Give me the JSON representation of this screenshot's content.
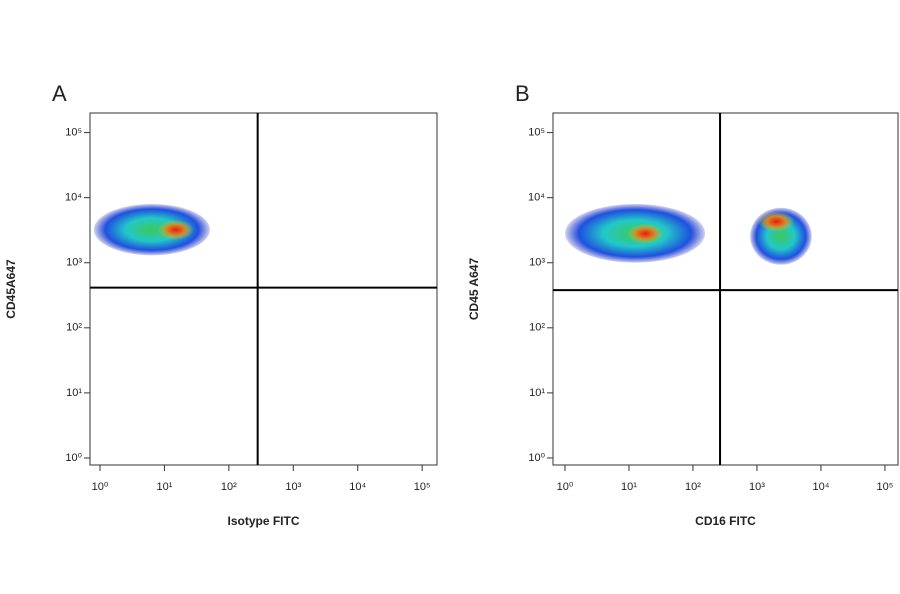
{
  "chart_data": [
    {
      "type": "density",
      "panel": "A",
      "x_label": "Isotype FITC",
      "y_label": "CD45A647",
      "log_scale": true,
      "xlim": [
        0.7,
        170000
      ],
      "ylim": [
        0.78,
        200000
      ],
      "xticks": [
        {
          "value": 1,
          "label": "10⁰"
        },
        {
          "value": 10,
          "label": "10¹"
        },
        {
          "value": 100,
          "label": "10²"
        },
        {
          "value": 1000,
          "label": "10³"
        },
        {
          "value": 10000,
          "label": "10⁴"
        },
        {
          "value": 100000,
          "label": "10⁵"
        }
      ],
      "yticks": [
        {
          "value": 1,
          "label": "10⁰"
        },
        {
          "value": 10,
          "label": "10¹"
        },
        {
          "value": 100,
          "label": "10²"
        },
        {
          "value": 1000,
          "label": "10³"
        },
        {
          "value": 10000,
          "label": "10⁴"
        },
        {
          "value": 100000,
          "label": "10⁵"
        }
      ],
      "gate": {
        "x": 280,
        "y": 415
      },
      "populations": [
        {
          "x": [
            0.8,
            51
          ],
          "y": [
            1300,
            8000
          ],
          "peak_x": 15,
          "peak_y": 3200
        }
      ]
    },
    {
      "type": "density",
      "panel": "B",
      "x_label": "CD16 FITC",
      "y_label": "CD45 A647",
      "log_scale": true,
      "xlim": [
        0.65,
        160000
      ],
      "ylim": [
        0.78,
        200000
      ],
      "xticks": [
        {
          "value": 1,
          "label": "10⁰"
        },
        {
          "value": 10,
          "label": "10¹"
        },
        {
          "value": 100,
          "label": "10²"
        },
        {
          "value": 1000,
          "label": "10³"
        },
        {
          "value": 10000,
          "label": "10⁴"
        },
        {
          "value": 100000,
          "label": "10⁵"
        }
      ],
      "yticks": [
        {
          "value": 1,
          "label": "10⁰"
        },
        {
          "value": 10,
          "label": "10¹"
        },
        {
          "value": 100,
          "label": "10²"
        },
        {
          "value": 1000,
          "label": "10³"
        },
        {
          "value": 10000,
          "label": "10⁴"
        },
        {
          "value": 100000,
          "label": "10⁵"
        }
      ],
      "gate": {
        "x": 265,
        "y": 380
      },
      "populations": [
        {
          "x": [
            1,
            155
          ],
          "y": [
            1000,
            8000
          ],
          "peak_x": 18,
          "peak_y": 2800
        },
        {
          "x": [
            780,
            7200
          ],
          "y": [
            930,
            7000
          ],
          "peak_x": 2000,
          "peak_y": 4300
        }
      ]
    }
  ]
}
